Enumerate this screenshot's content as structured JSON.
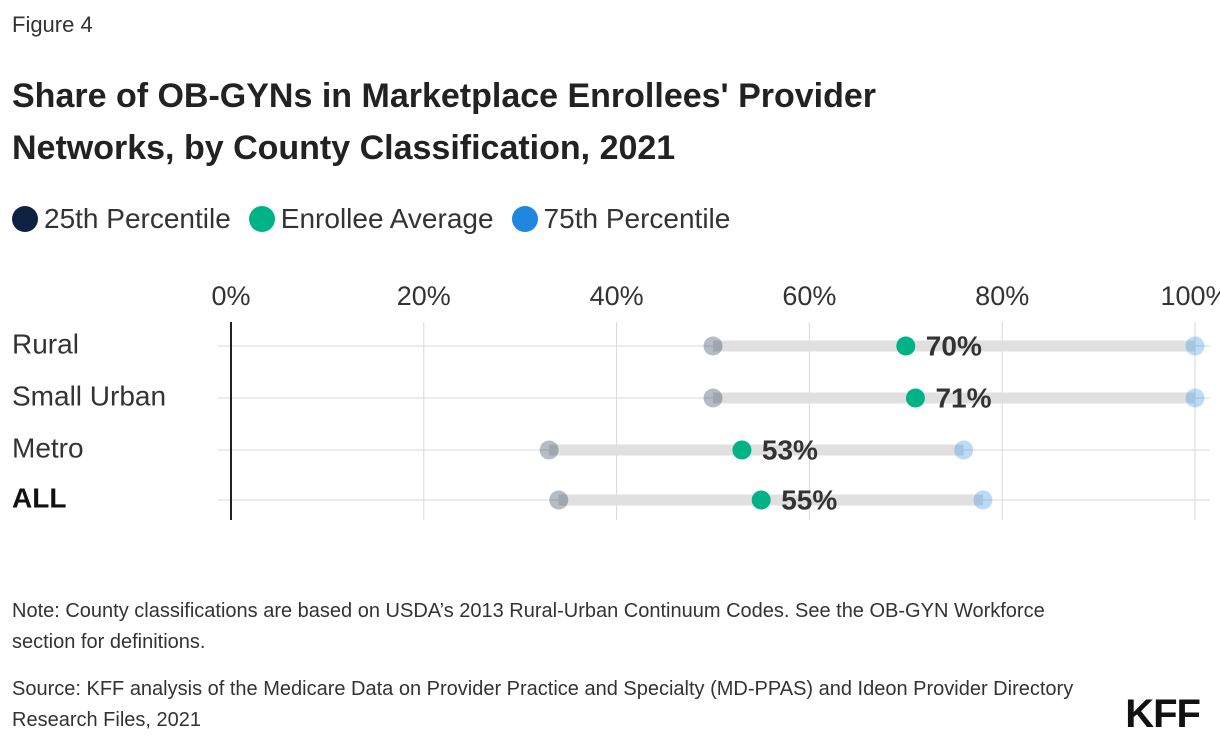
{
  "figure_label": "Figure 4",
  "chart_data": {
    "type": "dot",
    "title": "Share of OB-GYNs in Marketplace Enrollees' Provider Networks, by County Classification, 2021",
    "categories": [
      "Rural",
      "Small Urban",
      "Metro",
      "ALL"
    ],
    "series": [
      {
        "name": "25th Percentile",
        "color": "#0d2240",
        "values": [
          50,
          50,
          33,
          34
        ]
      },
      {
        "name": "Enrollee Average",
        "color": "#00b386",
        "values": [
          70,
          71,
          53,
          55
        ],
        "value_labels": [
          "70%",
          "71%",
          "53%",
          "55%"
        ]
      },
      {
        "name": "75th Percentile",
        "color": "#1f87e0",
        "values": [
          100,
          100,
          76,
          78
        ]
      }
    ],
    "xlim": [
      0,
      100
    ],
    "xticks": [
      {
        "value": 0,
        "label": "0%"
      },
      {
        "value": 20,
        "label": "20%"
      },
      {
        "value": 40,
        "label": "40%"
      },
      {
        "value": 60,
        "label": "60%"
      },
      {
        "value": 80,
        "label": "80%"
      },
      {
        "value": 100,
        "label": "100%"
      }
    ],
    "grid": true
  },
  "note": "Note: County classifications are based on USDA’s 2013 Rural-Urban Continuum Codes. See the OB-GYN Workforce section for definitions.",
  "source": "Source: KFF analysis of the Medicare Data on Provider Practice and Specialty (MD-PPAS) and Ideon Provider Directory Research Files, 2021",
  "logo": "KFF"
}
